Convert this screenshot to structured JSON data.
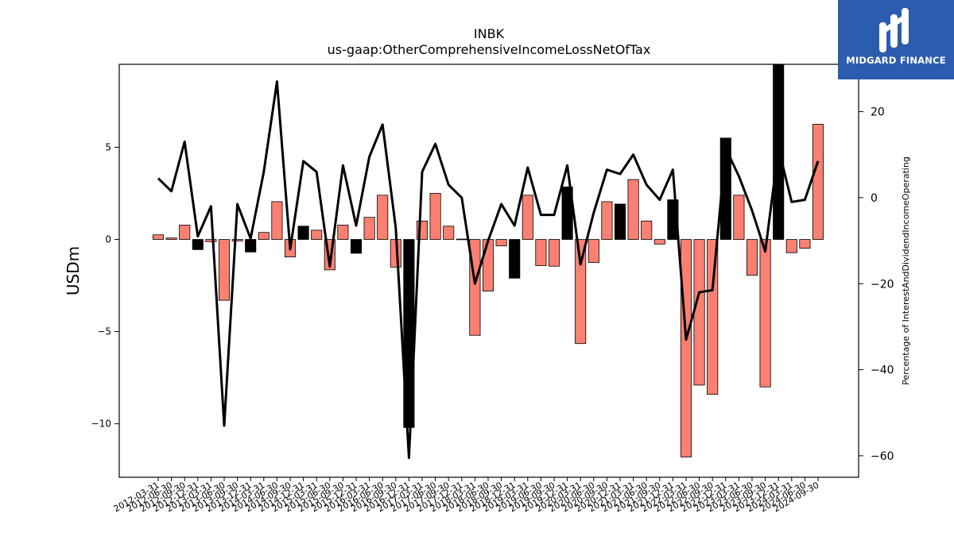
{
  "chart_data": {
    "type": "bar",
    "title": "INBK",
    "subtitle": "us-gaap:OtherComprehensiveIncomeLossNetOfTax",
    "ylabel": "USDm",
    "y2label": "Percentage of InterestAndDividendIncomeOperating",
    "ylim": [
      -12.9,
      9.5
    ],
    "y2lim": [
      -65,
      31
    ],
    "yticks": [
      -10,
      -5,
      0,
      5
    ],
    "y2ticks": [
      -60,
      -40,
      -20,
      0,
      20
    ],
    "grid": false,
    "colors": {
      "positive": "#fa8072",
      "negative": "#000000",
      "line": "#000000"
    },
    "categories": [
      "2012-03-31",
      "2012-06-30",
      "2012-09-30",
      "2012-12-31",
      "2013-03-31",
      "2013-06-30",
      "2013-09-30",
      "2013-12-31",
      "2014-03-31",
      "2014-06-30",
      "2014-09-30",
      "2014-12-31",
      "2015-03-31",
      "2015-06-30",
      "2015-09-30",
      "2015-12-31",
      "2016-03-31",
      "2016-06-30",
      "2016-09-30",
      "2016-12-31",
      "2017-03-31",
      "2017-06-30",
      "2017-09-30",
      "2017-12-31",
      "2018-03-31",
      "2018-06-30",
      "2018-09-30",
      "2018-12-31",
      "2019-03-31",
      "2019-06-30",
      "2019-09-30",
      "2019-12-31",
      "2020-03-31",
      "2020-06-30",
      "2020-09-30",
      "2020-12-31",
      "2021-03-31",
      "2021-06-30",
      "2021-09-30",
      "2021-12-31",
      "2022-03-31",
      "2022-06-30",
      "2022-09-30",
      "2022-12-31",
      "2023-03-31",
      "2023-06-30",
      "2023-09-30",
      "2023-12-31",
      "2024-03-31",
      "2024-06-30",
      "2024-09-30"
    ],
    "series": [
      {
        "type": "bar",
        "values": [
          0.25,
          0.08,
          0.78,
          -0.55,
          -0.12,
          -3.3,
          -0.08,
          -0.68,
          0.38,
          2.05,
          -0.95,
          0.72,
          0.5,
          -1.65,
          0.78,
          -0.75,
          1.2,
          2.4,
          -1.5,
          -10.2,
          1.0,
          2.5,
          0.72,
          0.02,
          -5.2,
          -2.8,
          -0.35,
          -2.1,
          2.4,
          -1.42,
          -1.45,
          2.85,
          -5.65,
          -1.25,
          2.05,
          1.92,
          3.25,
          1.0,
          -0.25,
          2.15,
          -11.8,
          -7.9,
          -8.4,
          5.5,
          2.4,
          -1.95,
          -8.0,
          9.6,
          -0.72,
          -0.48,
          6.25
        ],
        "color_state": [
          "pos",
          "pos",
          "pos",
          "neg",
          "pos",
          "pos",
          "pos",
          "neg",
          "pos",
          "pos",
          "pos",
          "neg",
          "pos",
          "pos",
          "pos",
          "neg",
          "pos",
          "pos",
          "pos",
          "neg",
          "pos",
          "pos",
          "pos",
          "neg",
          "pos",
          "pos",
          "pos",
          "neg",
          "pos",
          "pos",
          "pos",
          "neg",
          "pos",
          "pos",
          "pos",
          "neg",
          "pos",
          "pos",
          "pos",
          "neg",
          "pos",
          "pos",
          "pos",
          "neg",
          "pos",
          "pos",
          "pos",
          "neg",
          "pos",
          "pos",
          "pos"
        ]
      },
      {
        "type": "line",
        "axis": "right",
        "values": [
          4.5,
          1.5,
          13.0,
          -9.0,
          -2.0,
          -53.0,
          -1.5,
          -9.5,
          6.0,
          27.0,
          -12.0,
          8.5,
          6.0,
          -16.0,
          7.5,
          -6.5,
          9.5,
          17.0,
          -7.0,
          -60.5,
          6.0,
          12.5,
          3.0,
          0.0,
          -20.0,
          -10.0,
          -1.5,
          -6.5,
          7.0,
          -4.0,
          -4.0,
          7.5,
          -15.5,
          -3.5,
          6.5,
          5.5,
          10.0,
          3.0,
          -0.5,
          6.5,
          -33.0,
          -22.0,
          -21.5,
          11.5,
          5.0,
          -3.0,
          -12.5,
          11.5,
          -1.0,
          -0.5,
          8.5
        ]
      }
    ]
  },
  "logo": {
    "text": "MIDGARD FINANCE"
  }
}
